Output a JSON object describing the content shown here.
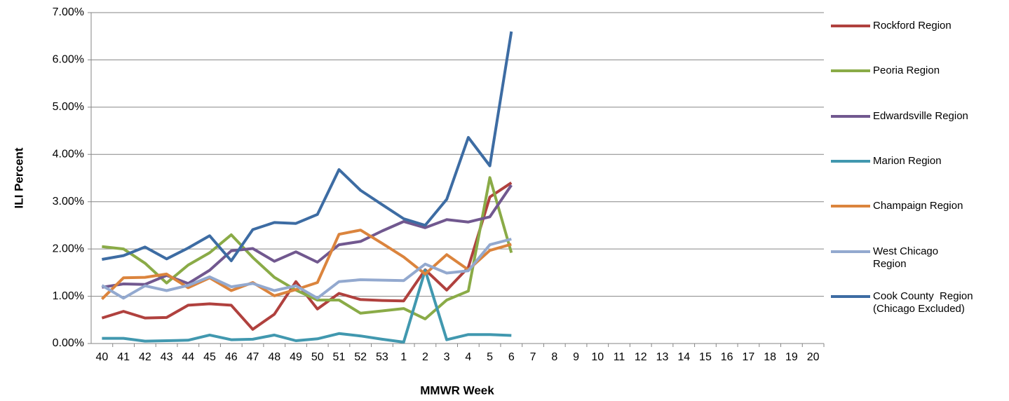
{
  "chart_data": {
    "type": "line",
    "x_label": "MMWR Week",
    "y_label": "ILI Percent",
    "categories": [
      "40",
      "41",
      "42",
      "43",
      "44",
      "45",
      "46",
      "47",
      "48",
      "49",
      "50",
      "51",
      "52",
      "53",
      "1",
      "2",
      "3",
      "4",
      "5",
      "6",
      "7",
      "8",
      "9",
      "10",
      "11",
      "12",
      "13",
      "14",
      "15",
      "16",
      "17",
      "18",
      "19",
      "20"
    ],
    "ylim": [
      0,
      7
    ],
    "yticks": [
      {
        "value": 0,
        "label": "0.00%"
      },
      {
        "value": 1,
        "label": "1.00%"
      },
      {
        "value": 2,
        "label": "2.00%"
      },
      {
        "value": 3,
        "label": "3.00%"
      },
      {
        "value": 4,
        "label": "4.00%"
      },
      {
        "value": 5,
        "label": "5.00%"
      },
      {
        "value": 6,
        "label": "6.00%"
      },
      {
        "value": 7,
        "label": "7.00%"
      }
    ],
    "grid": true,
    "legend": "right",
    "series": [
      {
        "name": "Rockford Region",
        "color": "#b0413e",
        "values": [
          0.54,
          0.68,
          0.54,
          0.55,
          0.81,
          0.84,
          0.81,
          0.3,
          0.62,
          1.31,
          0.73,
          1.06,
          0.93,
          0.91,
          0.9,
          1.56,
          1.13,
          1.61,
          3.1,
          3.4,
          null,
          null,
          null,
          null,
          null,
          null,
          null,
          null,
          null,
          null,
          null,
          null,
          null,
          null
        ]
      },
      {
        "name": "Peoria Region",
        "color": "#8aab47",
        "values": [
          2.05,
          2.0,
          1.7,
          1.28,
          1.66,
          1.92,
          2.3,
          1.82,
          1.4,
          1.13,
          0.92,
          0.92,
          0.64,
          0.69,
          0.74,
          0.52,
          0.92,
          1.11,
          3.51,
          1.92,
          null,
          null,
          null,
          null,
          null,
          null,
          null,
          null,
          null,
          null,
          null,
          null,
          null,
          null
        ]
      },
      {
        "name": "Edwardsville Region",
        "color": "#71588f",
        "values": [
          1.19,
          1.26,
          1.25,
          1.44,
          1.27,
          1.55,
          1.96,
          2.01,
          1.74,
          1.94,
          1.72,
          2.09,
          2.16,
          2.38,
          2.58,
          2.45,
          2.62,
          2.57,
          2.68,
          3.35,
          null,
          null,
          null,
          null,
          null,
          null,
          null,
          null,
          null,
          null,
          null,
          null,
          null,
          null
        ]
      },
      {
        "name": "Marion Region",
        "color": "#4198af",
        "values": [
          0.11,
          0.11,
          0.05,
          0.06,
          0.07,
          0.18,
          0.08,
          0.09,
          0.18,
          0.06,
          0.1,
          0.21,
          0.16,
          0.09,
          0.03,
          1.55,
          0.08,
          0.19,
          0.19,
          0.17,
          null,
          null,
          null,
          null,
          null,
          null,
          null,
          null,
          null,
          null,
          null,
          null,
          null,
          null
        ]
      },
      {
        "name": "Champaign Region",
        "color": "#db843d",
        "values": [
          0.94,
          1.39,
          1.4,
          1.47,
          1.18,
          1.39,
          1.12,
          1.29,
          1.01,
          1.14,
          1.29,
          2.31,
          2.4,
          2.12,
          1.83,
          1.47,
          1.88,
          1.56,
          1.97,
          2.1,
          null,
          null,
          null,
          null,
          null,
          null,
          null,
          null,
          null,
          null,
          null,
          null,
          null,
          null
        ]
      },
      {
        "name": "West Chicago\nRegion",
        "color": "#93a9cf",
        "values": [
          1.23,
          0.96,
          1.22,
          1.12,
          1.23,
          1.41,
          1.2,
          1.27,
          1.12,
          1.22,
          0.96,
          1.31,
          1.35,
          1.34,
          1.33,
          1.68,
          1.49,
          1.54,
          2.09,
          2.21,
          null,
          null,
          null,
          null,
          null,
          null,
          null,
          null,
          null,
          null,
          null,
          null,
          null,
          null
        ]
      },
      {
        "name": "Cook County  Region\n(Chicago Excluded)",
        "color": "#3d6ca3",
        "values": [
          1.78,
          1.86,
          2.04,
          1.79,
          2.02,
          2.28,
          1.75,
          2.41,
          2.56,
          2.54,
          2.73,
          3.68,
          3.24,
          2.94,
          2.64,
          2.5,
          3.05,
          4.36,
          3.76,
          6.6,
          null,
          null,
          null,
          null,
          null,
          null,
          null,
          null,
          null,
          null,
          null,
          null,
          null,
          null
        ]
      }
    ]
  }
}
